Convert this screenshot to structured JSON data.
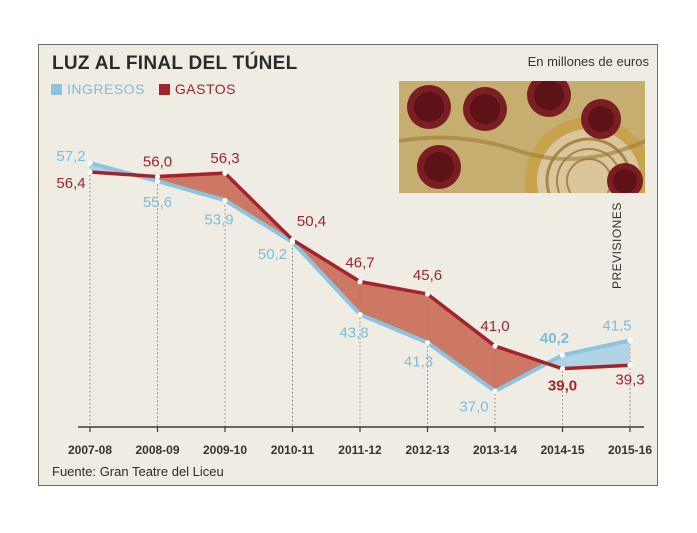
{
  "header": {
    "title": "LUZ AL FINAL DEL TÚNEL",
    "units": "En millones de euros"
  },
  "footer": {
    "source": "Fuente: Gran Teatre del Liceu"
  },
  "annotation": "PREVISIONES",
  "colors": {
    "ingresos": "#8cc4e0",
    "gastos": "#a3232b",
    "fill_gastos_above": "#c96a56",
    "fill_ingresos_above": "#a8d2e4",
    "background": "#efece4"
  },
  "chart_data": {
    "type": "line",
    "categories": [
      "2007-08",
      "2008-09",
      "2009-10",
      "2010-11",
      "2011-12",
      "2012-13",
      "2013-14",
      "2014-15",
      "2015-16"
    ],
    "series": [
      {
        "name": "INGRESOS",
        "values": [
          57.2,
          55.6,
          53.9,
          50.2,
          43.8,
          41.3,
          37.0,
          40.2,
          41.5
        ],
        "labels": [
          "57,2",
          "55,6",
          "53,9",
          "50,2",
          "43,8",
          "41,3",
          "37,0",
          "40,2",
          "41,5"
        ]
      },
      {
        "name": "GASTOS",
        "values": [
          56.4,
          56.0,
          56.3,
          50.4,
          46.7,
          45.6,
          41.0,
          39.0,
          39.3
        ],
        "labels": [
          "56,4",
          "56,0",
          "56,3",
          "50,4",
          "46,7",
          "45,6",
          "41,0",
          "39,0",
          "39,3"
        ]
      }
    ],
    "bold_labels": {
      "INGRESOS": [
        7
      ],
      "GASTOS": [
        7
      ]
    },
    "grid": "vertical-dotted",
    "legend": "top-left"
  }
}
